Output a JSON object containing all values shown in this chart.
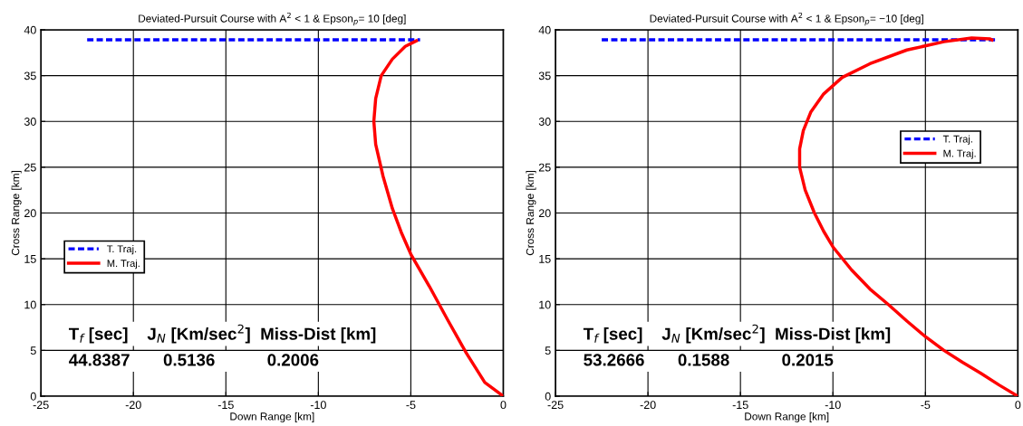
{
  "chart_data": [
    {
      "type": "line",
      "title": "Deviated-Pursuit Course with A$^{2}$ < 1 & Epson$_{p}$= 10 [deg]",
      "xlabel": "Down Range [km]",
      "ylabel": "Cross Range [km]",
      "xlim": [
        -25,
        0
      ],
      "ylim": [
        0,
        40
      ],
      "xticks": [
        -25,
        -20,
        -15,
        -10,
        -5,
        0
      ],
      "yticks": [
        0,
        5,
        10,
        15,
        20,
        25,
        30,
        35,
        40
      ],
      "grid": true,
      "legend": "left",
      "series": [
        {
          "name": "T. Traj.",
          "color": "#0000ff",
          "line_style": "dashed",
          "x": [
            -22.5,
            -4.5
          ],
          "values": [
            38.9,
            38.9
          ]
        },
        {
          "name": "M. Traj.",
          "color": "#ff0000",
          "line_style": "solid",
          "x": [
            0,
            -1,
            -2,
            -3,
            -4,
            -5,
            -5.5,
            -6,
            -6.5,
            -6.9,
            -7,
            -6.9,
            -6.6,
            -6,
            -5.3,
            -4.7
          ],
          "values": [
            0,
            1.5,
            4.7,
            8.3,
            12,
            15.5,
            17.8,
            20.5,
            24,
            27.5,
            30,
            32.5,
            35,
            36.8,
            38.2,
            38.8
          ]
        }
      ],
      "annotations": [
        "T$_{f}$ [sec]    J$_{N}$ [Km/sec$^{2}$]  Miss-Dist [km]",
        "44.8387       0.5136           0.2006"
      ]
    },
    {
      "type": "line",
      "title": "Deviated-Pursuit Course with A$^{2}$ < 1 & Epson$_{p}$= −10 [deg]",
      "xlabel": "Down Range [km]",
      "ylabel": "Cross Range [km]",
      "xlim": [
        -25,
        0
      ],
      "ylim": [
        0,
        40
      ],
      "xticks": [
        -25,
        -20,
        -15,
        -10,
        -5,
        0
      ],
      "yticks": [
        0,
        5,
        10,
        15,
        20,
        25,
        30,
        35,
        40
      ],
      "grid": true,
      "legend": "right",
      "series": [
        {
          "name": "T. Traj.",
          "color": "#0000ff",
          "line_style": "dashed",
          "x": [
            -22.5,
            -1.2
          ],
          "values": [
            38.9,
            38.9
          ]
        },
        {
          "name": "M. Traj.",
          "color": "#ff0000",
          "line_style": "solid",
          "x": [
            0,
            -1,
            -2,
            -3,
            -4,
            -5,
            -6,
            -7,
            -8,
            -9,
            -10,
            -10.5,
            -11,
            -11.5,
            -11.8,
            -11.8,
            -11.6,
            -11.2,
            -10.5,
            -9.5,
            -8,
            -6,
            -4,
            -2.5,
            -1.5,
            -1.4
          ],
          "values": [
            0,
            1.2,
            2.5,
            3.7,
            5,
            6.5,
            8.2,
            10,
            11.7,
            13.8,
            16.3,
            18,
            20,
            22.5,
            25,
            27,
            29,
            31,
            33,
            34.8,
            36.3,
            37.8,
            38.7,
            39.1,
            39.0,
            38.9
          ]
        }
      ],
      "annotations": [
        "T$_{f}$ [sec]    J$_{N}$ [Km/sec$^{2}$]  Miss-Dist [km]",
        "53.2666       0.1588           0.2015"
      ]
    }
  ]
}
